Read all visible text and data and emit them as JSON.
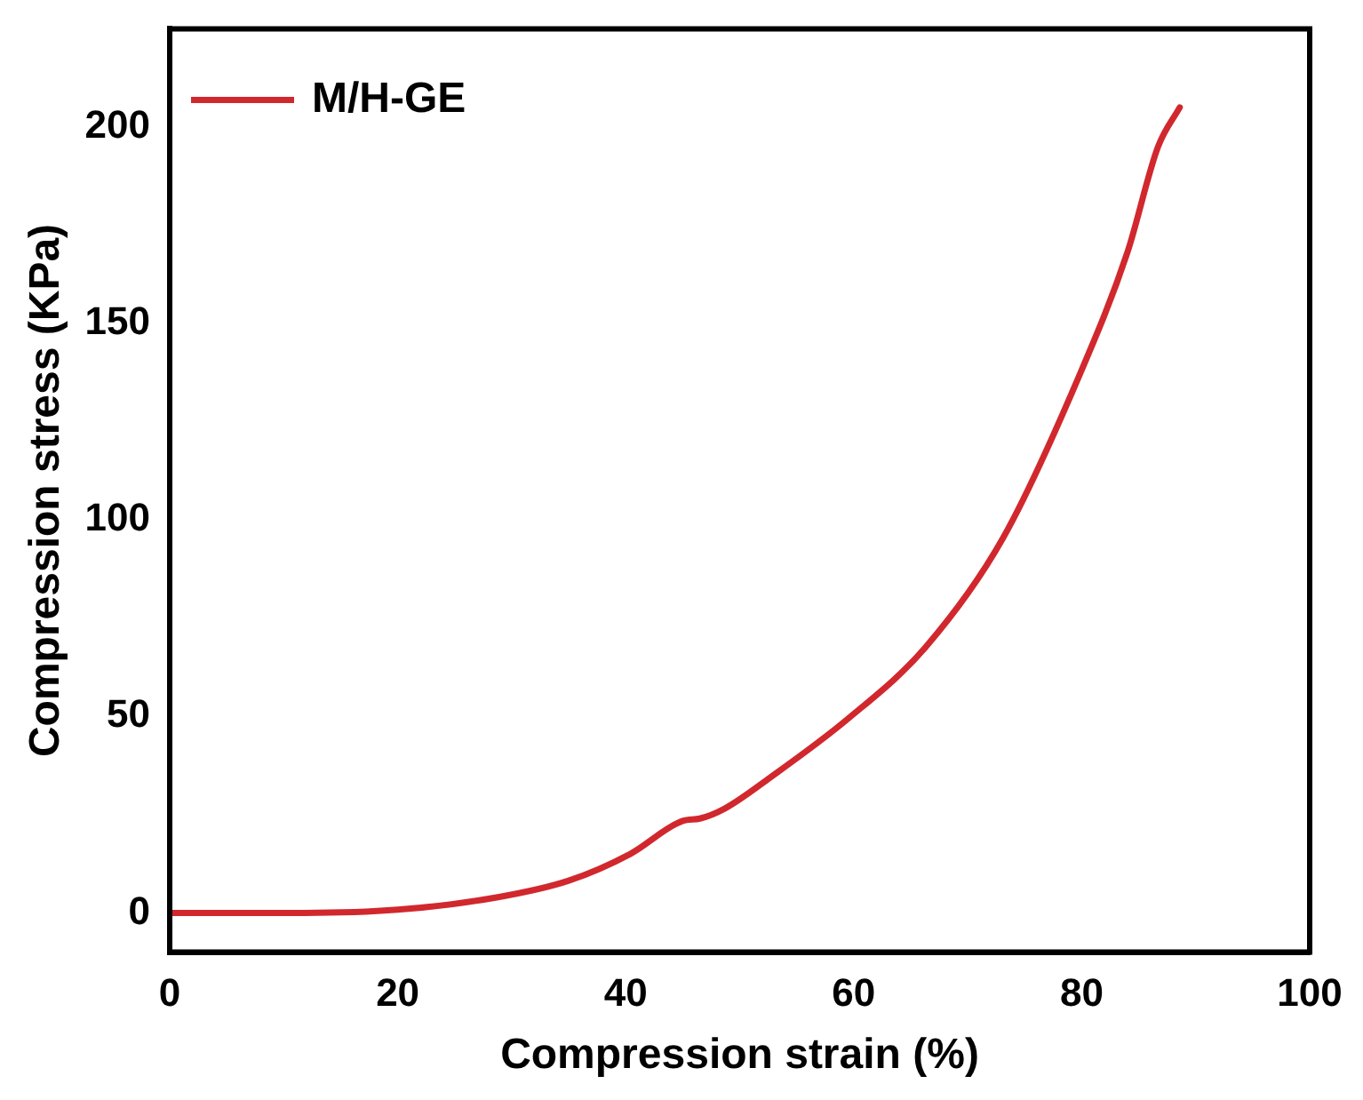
{
  "chart_data": {
    "type": "line",
    "xlabel": "Compression strain (%)",
    "ylabel": "Compression stress (KPa)",
    "xlim": [
      0,
      100
    ],
    "xticks": [
      0,
      20,
      40,
      60,
      80,
      100
    ],
    "ylim": [
      -10,
      225
    ],
    "yticks": [
      0,
      50,
      100,
      150,
      200
    ],
    "grid": false,
    "legend": "top left",
    "marker": "none",
    "line_style": "solid",
    "series": [
      {
        "name": "M/H-GE",
        "color": "#d1282e",
        "x": [
          0,
          11.8,
          20,
          28.8,
          35,
          40.4,
          45,
          46.5,
          48.6,
          52.7,
          59.5,
          66.3,
          73.1,
          79.9,
          84,
          86.7,
          88.6
        ],
        "values": [
          0,
          0,
          0.8,
          4,
          8.2,
          15,
          23.4,
          24,
          26.4,
          34.5,
          49.4,
          67.6,
          95.4,
          137.5,
          168,
          195,
          205
        ]
      }
    ]
  }
}
